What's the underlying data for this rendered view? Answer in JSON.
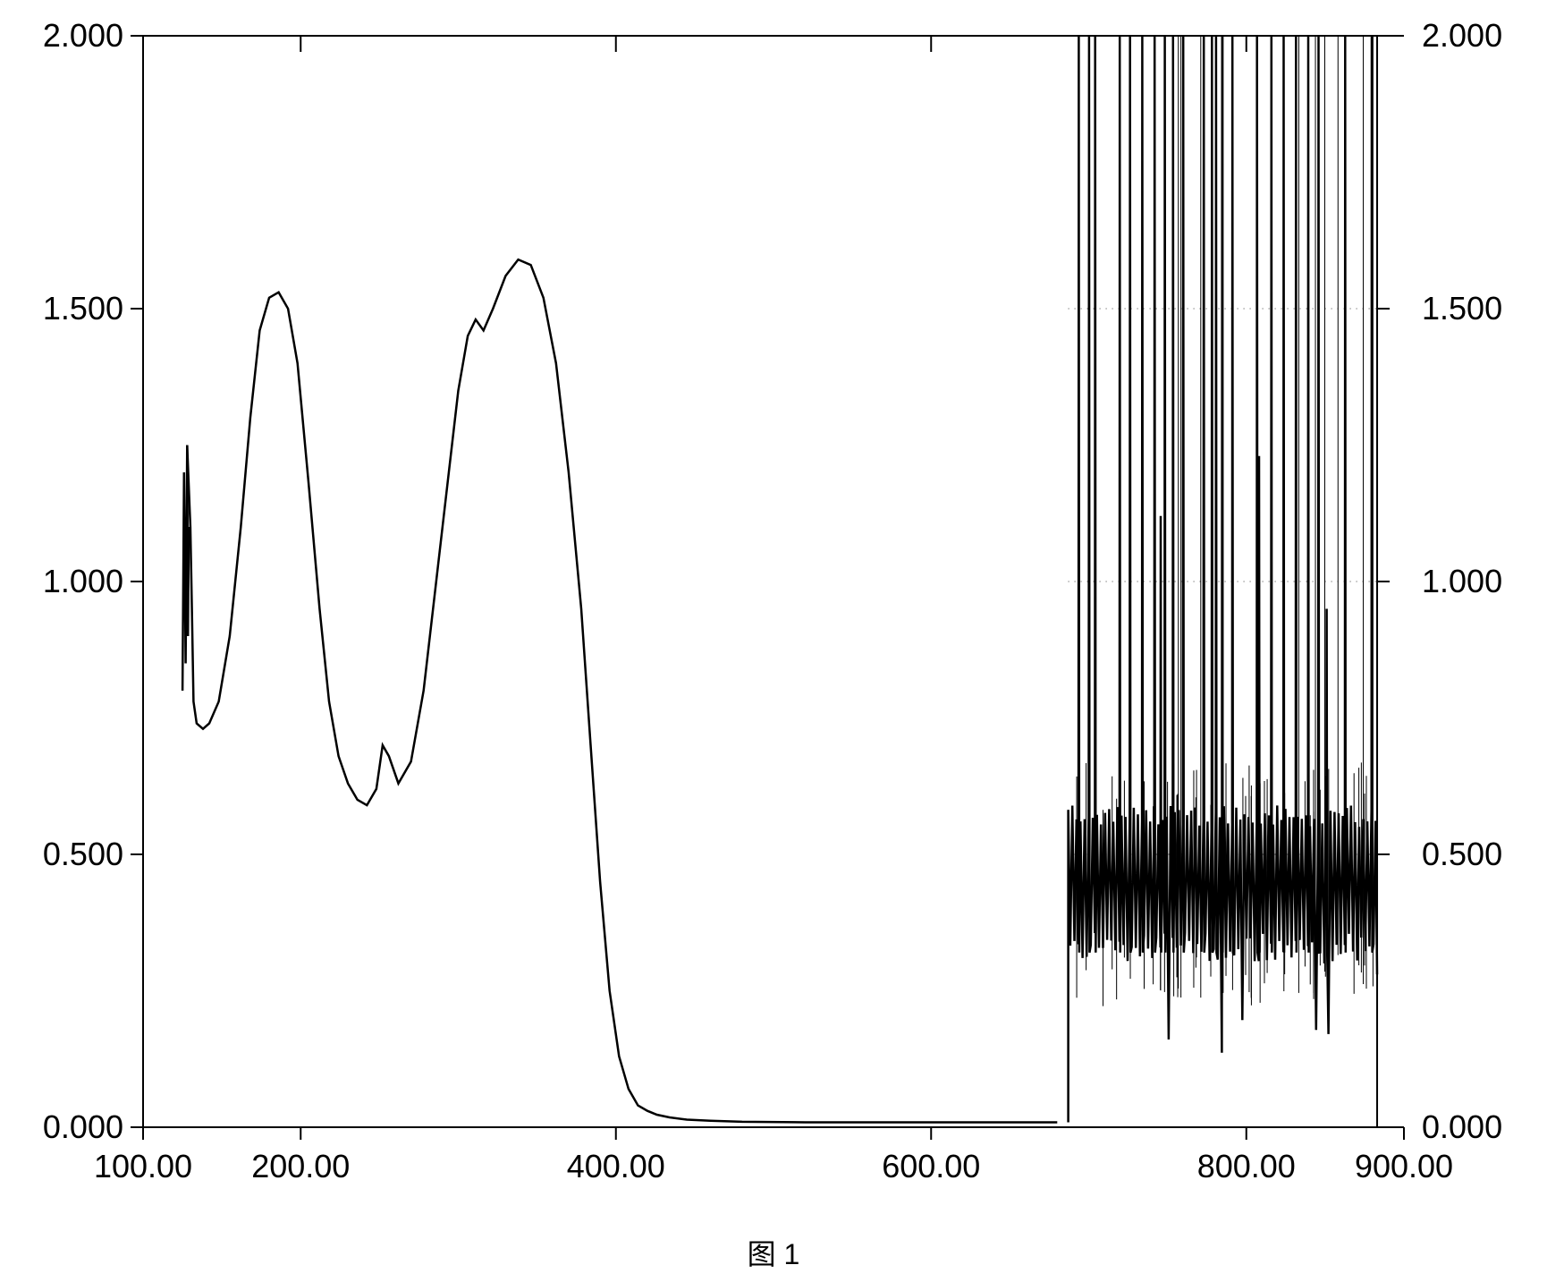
{
  "caption": "图 1",
  "chart": {
    "type": "line",
    "background_color": "#ffffff",
    "line_color": "#000000",
    "axis_color": "#000000",
    "grid_color": "#444444",
    "line_width": 2.5,
    "axis_width": 2,
    "label_fontsize": 36,
    "xlim": [
      100,
      900
    ],
    "ylim": [
      0.0,
      2.0
    ],
    "xticks": [
      100.0,
      200.0,
      400.0,
      600.0,
      800.0,
      900.0
    ],
    "yticks_left": [
      0.0,
      0.5,
      1.0,
      1.5,
      2.0
    ],
    "yticks_right": [
      0.0,
      0.5,
      1.0,
      1.5,
      2.0
    ],
    "top_tick_positions": [
      200,
      400,
      600,
      800
    ],
    "grid_rows_y": [
      0.5,
      1.0,
      1.5
    ],
    "grid_x_range": [
      687,
      883
    ],
    "smooth_series": [
      [
        128,
        1.25
      ],
      [
        130,
        1.1
      ],
      [
        131,
        0.95
      ],
      [
        132,
        0.78
      ],
      [
        134,
        0.74
      ],
      [
        138,
        0.73
      ],
      [
        142,
        0.74
      ],
      [
        148,
        0.78
      ],
      [
        155,
        0.9
      ],
      [
        162,
        1.1
      ],
      [
        168,
        1.3
      ],
      [
        174,
        1.46
      ],
      [
        180,
        1.52
      ],
      [
        186,
        1.53
      ],
      [
        192,
        1.5
      ],
      [
        198,
        1.4
      ],
      [
        205,
        1.18
      ],
      [
        212,
        0.95
      ],
      [
        218,
        0.78
      ],
      [
        224,
        0.68
      ],
      [
        230,
        0.63
      ],
      [
        236,
        0.6
      ],
      [
        242,
        0.59
      ],
      [
        248,
        0.62
      ],
      [
        252,
        0.7
      ],
      [
        256,
        0.68
      ],
      [
        262,
        0.63
      ],
      [
        270,
        0.67
      ],
      [
        278,
        0.8
      ],
      [
        286,
        1.0
      ],
      [
        294,
        1.2
      ],
      [
        300,
        1.35
      ],
      [
        306,
        1.45
      ],
      [
        311,
        1.48
      ],
      [
        316,
        1.46
      ],
      [
        322,
        1.5
      ],
      [
        330,
        1.56
      ],
      [
        338,
        1.59
      ],
      [
        346,
        1.58
      ],
      [
        354,
        1.52
      ],
      [
        362,
        1.4
      ],
      [
        370,
        1.2
      ],
      [
        378,
        0.95
      ],
      [
        384,
        0.7
      ],
      [
        390,
        0.45
      ],
      [
        396,
        0.25
      ],
      [
        402,
        0.13
      ],
      [
        408,
        0.07
      ],
      [
        414,
        0.04
      ],
      [
        420,
        0.03
      ],
      [
        426,
        0.023
      ],
      [
        434,
        0.018
      ],
      [
        445,
        0.014
      ],
      [
        460,
        0.012
      ],
      [
        480,
        0.01
      ],
      [
        520,
        0.009
      ],
      [
        560,
        0.009
      ],
      [
        600,
        0.009
      ],
      [
        640,
        0.009
      ],
      [
        660,
        0.009
      ],
      [
        680,
        0.009
      ]
    ],
    "noise_start_x": 687,
    "noise_end_x": 883,
    "noise_baseline_low": 0.32,
    "noise_baseline_high": 0.57,
    "noise_floor_min": 0.13,
    "noise_spike_top": 2.0,
    "noise_spikes_x": [
      693,
      700,
      704,
      711,
      719,
      726,
      734,
      742,
      748,
      753,
      760,
      767,
      773,
      778,
      781,
      784,
      791,
      798,
      807,
      816,
      823,
      831,
      839,
      846,
      854,
      862,
      871,
      879
    ],
    "noise_mid_spikes": [
      [
        745,
        1.12
      ],
      [
        773,
        1.93
      ],
      [
        781,
        1.66
      ],
      [
        808,
        1.23
      ],
      [
        851,
        0.95
      ]
    ]
  }
}
